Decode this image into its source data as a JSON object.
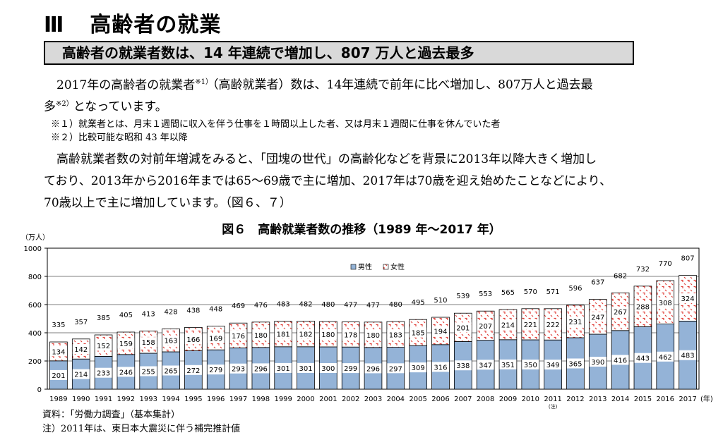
{
  "heading": {
    "number": "Ⅲ",
    "title": "高齢者の就業"
  },
  "subheading": "高齢者の就業者数は、14 年連続で増加し、807 万人と過去最多",
  "paragraph1": {
    "line1_a": "2017年の高齢者の就業者",
    "line1_sup": "※1）",
    "line1_b": "（高齢就業者）数は、14年連続で前年に比べ増加し、807万人と過去最",
    "line2_a": "多",
    "line2_sup": "※2）",
    "line2_b": "となっています。"
  },
  "notes": [
    "※１）就業者とは、月末１週間に収入を伴う仕事を１時間以上した者、又は月末１週間に仕事を休んでいた者",
    "※２）比較可能な昭和 43 年以降"
  ],
  "paragraph2": [
    "高齢就業者数の対前年増減をみると、「団塊の世代」の高齢化などを背景に2013年以降大きく増加し",
    "ており、2013年から2016年までは65～69歳で主に増加、2017年は70歳を迎え始めたことなどにより、",
    "70歳以上で主に増加しています。（図６、７）"
  ],
  "source": {
    "line1": "資料：「労働力調査」（基本集計）",
    "line2": "注）2011年は、東日本大震災に伴う補完推計値"
  },
  "colors": {
    "male": "#94b3d7",
    "female_bg": "#ffffff",
    "female_mark": "#e0403a",
    "grid": "#000000"
  },
  "chart_data": {
    "type": "bar",
    "stacked": true,
    "title": "図６　高齢就業者数の推移（1989 年～2017 年）",
    "ylabel": "（万人）",
    "xlabel": "(年)",
    "ylim": [
      0,
      1000
    ],
    "yticks": [
      0,
      200,
      400,
      600,
      800,
      1000
    ],
    "categories": [
      "1989",
      "1990",
      "1991",
      "1992",
      "1993",
      "1994",
      "1995",
      "1996",
      "1997",
      "1998",
      "1999",
      "2000",
      "2001",
      "2002",
      "2003",
      "2004",
      "2005",
      "2006",
      "2007",
      "2008",
      "2009",
      "2010",
      "2011",
      "2012",
      "2013",
      "2014",
      "2015",
      "2016",
      "2017"
    ],
    "category_note": {
      "index": 22,
      "label": "(注)"
    },
    "series": [
      {
        "name": "男性",
        "values": [
          201,
          214,
          233,
          246,
          255,
          265,
          272,
          279,
          293,
          296,
          301,
          301,
          300,
          299,
          296,
          297,
          309,
          316,
          338,
          347,
          351,
          350,
          349,
          365,
          390,
          416,
          443,
          462,
          483
        ]
      },
      {
        "name": "女性",
        "values": [
          134,
          142,
          152,
          159,
          158,
          163,
          166,
          169,
          176,
          180,
          181,
          182,
          180,
          178,
          180,
          183,
          185,
          194,
          201,
          207,
          214,
          221,
          222,
          231,
          247,
          267,
          288,
          308,
          324
        ]
      }
    ],
    "totals": [
      335,
      357,
      385,
      405,
      413,
      428,
      438,
      448,
      469,
      476,
      483,
      482,
      480,
      477,
      477,
      480,
      495,
      510,
      539,
      553,
      565,
      570,
      571,
      596,
      637,
      682,
      732,
      770,
      807
    ],
    "legend": {
      "male": "男性",
      "female": "女性",
      "position": "top-right"
    }
  }
}
